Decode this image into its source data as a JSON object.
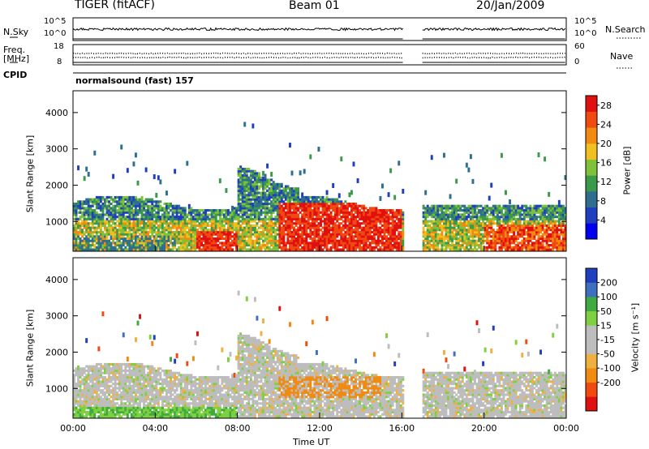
{
  "header": {
    "station": "TIGER (fitACF)",
    "beam": "Beam 01",
    "date": "20/Jan/2009"
  },
  "side_labels": {
    "nsky": "N.Sky",
    "nsearch": "N.Search",
    "freq": "Freq.",
    "freq_unit": "[MHz]",
    "cpid": "CPID",
    "nave": "Nave",
    "nsky_ticks": [
      "10^5",
      "10^0"
    ],
    "nsearch_ticks": [
      "10^5",
      "10^0"
    ],
    "freq_ticks": [
      "18",
      "8"
    ],
    "nave_ticks": [
      "60",
      "0"
    ]
  },
  "cpid_text": "normalsound (fast) 157",
  "colors": {
    "power": [
      "#0000ee",
      "#1f3fbf",
      "#2e6e8e",
      "#3b9a4a",
      "#7fc23a",
      "#f0c020",
      "#f08a10",
      "#f04a10",
      "#e01010"
    ],
    "velocity": [
      "#e01010",
      "#f04a10",
      "#f08a10",
      "#f0b040",
      "#bdbdbd",
      "#bdbdbd",
      "#7fd040",
      "#3faa3f",
      "#3f6fbf",
      "#1f3fbf"
    ]
  },
  "chart_data": [
    {
      "type": "heatmap",
      "title": "Power",
      "ylabel": "Slant Range [km]",
      "xlabel": "",
      "ylim": [
        180,
        4600
      ],
      "yticks": [
        "1000",
        "2000",
        "3000",
        "4000"
      ],
      "xlim": [
        0,
        24
      ],
      "data_gap_hours": [
        16.1,
        17.0
      ],
      "colorbar_label": "Power [dB]",
      "colorbar_ticks": [
        "4",
        "8",
        "12",
        "16",
        "20",
        "24",
        "28"
      ],
      "colorbar_range": [
        0,
        30
      ]
    },
    {
      "type": "heatmap",
      "title": "Velocity",
      "ylabel": "Slant Range [km]",
      "xlabel": "Time UT",
      "ylim": [
        180,
        4600
      ],
      "yticks": [
        "1000",
        "2000",
        "3000",
        "4000"
      ],
      "xlim": [
        0,
        24
      ],
      "xticks": [
        "00:00",
        "04:00",
        "08:00",
        "12:00",
        "16:00",
        "20:00",
        "00:00"
      ],
      "data_gap_hours": [
        16.1,
        17.0
      ],
      "colorbar_label": "Velocity [m s⁻¹]",
      "colorbar_ticks": [
        "200",
        "100",
        "50",
        "15",
        "-15",
        "-50",
        "-100",
        "-200"
      ]
    }
  ]
}
